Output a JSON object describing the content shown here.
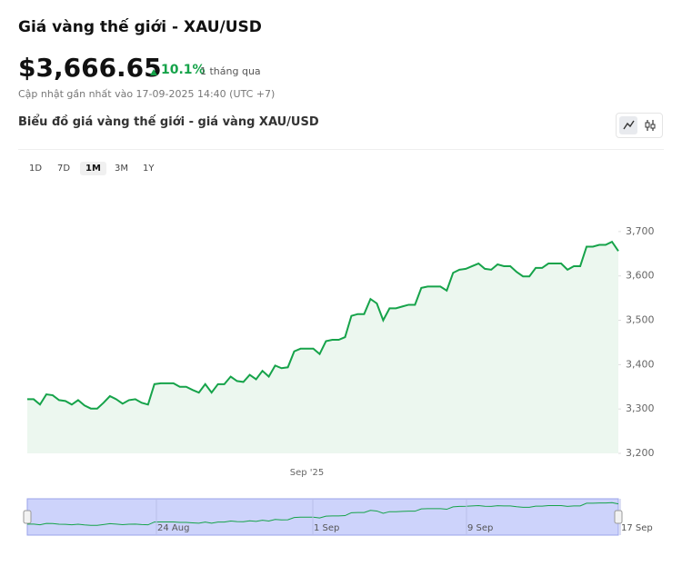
{
  "header": {
    "title": "Giá vàng thế giới - XAU/USD",
    "price": "$3,666.65",
    "change": "10.1%",
    "period": "1 tháng qua",
    "updated": "Cập nhật gần nhất vào 17-09-2025 14:40 (UTC +7)",
    "chart_heading": "Biểu đồ giá vàng thế giới - giá vàng XAU/USD"
  },
  "ranges": [
    "1D",
    "7D",
    "1M",
    "3M",
    "1Y"
  ],
  "navigator": {
    "labels": [
      "24 Aug",
      "1 Sep",
      "9 Sep",
      "17 Sep"
    ]
  },
  "chart_data": {
    "type": "area",
    "color": "#16a34a",
    "categories": [
      null,
      null,
      null,
      null,
      null,
      null,
      null,
      null,
      null,
      null,
      null,
      null,
      null,
      null,
      null,
      null,
      null,
      null,
      null,
      null,
      null,
      null,
      null,
      null,
      null,
      null,
      null,
      null,
      null,
      null,
      null,
      null,
      null,
      null,
      null,
      null,
      null,
      null,
      null,
      null,
      null,
      null,
      null,
      null,
      "Sep '25",
      null,
      null,
      null,
      null,
      null,
      null,
      null,
      null,
      null,
      null,
      null,
      null,
      null,
      null,
      null,
      null,
      null,
      null,
      null,
      null,
      null,
      null,
      null,
      null,
      null,
      null,
      null,
      null,
      null,
      null,
      null,
      null,
      null,
      null,
      null,
      null,
      null,
      null,
      null,
      null,
      null,
      null,
      null,
      null,
      null,
      null,
      null,
      null,
      null
    ],
    "values": [
      3322,
      3322,
      3310,
      3333,
      3331,
      3320,
      3318,
      3310,
      3320,
      3308,
      3301,
      3301,
      3314,
      3329,
      3322,
      3312,
      3320,
      3322,
      3314,
      3310,
      3356,
      3358,
      3358,
      3358,
      3350,
      3350,
      3343,
      3337,
      3356,
      3337,
      3356,
      3356,
      3373,
      3363,
      3361,
      3377,
      3367,
      3386,
      3373,
      3398,
      3392,
      3394,
      3430,
      3436,
      3436,
      3436,
      3424,
      3453,
      3456,
      3456,
      3462,
      3510,
      3514,
      3514,
      3548,
      3538,
      3500,
      3527,
      3527,
      3531,
      3535,
      3535,
      3573,
      3576,
      3576,
      3576,
      3567,
      3607,
      3614,
      3616,
      3622,
      3628,
      3616,
      3614,
      3626,
      3622,
      3622,
      3609,
      3599,
      3599,
      3618,
      3618,
      3628,
      3628,
      3628,
      3614,
      3622,
      3622,
      3666,
      3666,
      3670,
      3670,
      3677,
      3656
    ],
    "ylim": [
      3200,
      3710
    ],
    "yticks": [
      {
        "value": 3200,
        "label": "3,200"
      },
      {
        "value": 3300,
        "label": "3,300"
      },
      {
        "value": 3400,
        "label": "3,400"
      },
      {
        "value": 3500,
        "label": "3,500"
      },
      {
        "value": 3600,
        "label": "3,600"
      },
      {
        "value": 3700,
        "label": "3,700"
      }
    ]
  }
}
